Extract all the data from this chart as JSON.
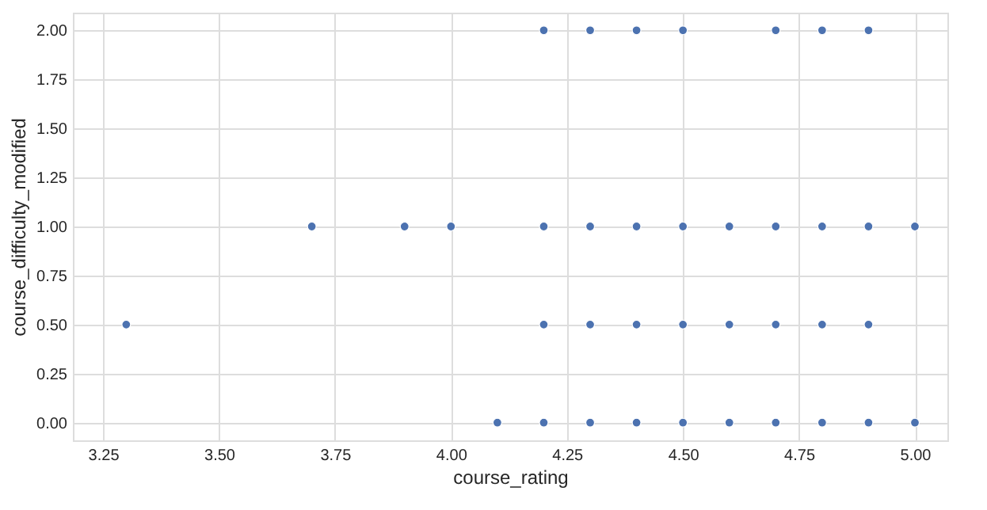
{
  "chart_data": {
    "type": "scatter",
    "xlabel": "course_rating",
    "ylabel": "course_difficulty_modified",
    "series": [
      {
        "color": "#4c72b0",
        "x": [
          4.2,
          4.3,
          4.4,
          4.5,
          4.7,
          4.8,
          4.9,
          3.7,
          3.9,
          4.0,
          4.2,
          4.3,
          4.4,
          4.5,
          4.6,
          4.7,
          4.8,
          4.9,
          5.0,
          3.3,
          4.2,
          4.3,
          4.4,
          4.5,
          4.6,
          4.7,
          4.8,
          4.9,
          4.1,
          4.2,
          4.3,
          4.4,
          4.5,
          4.6,
          4.7,
          4.8,
          4.9,
          5.0
        ],
        "values": [
          2,
          2,
          2,
          2,
          2,
          2,
          2,
          1,
          1,
          1,
          1,
          1,
          1,
          1,
          1,
          1,
          1,
          1,
          1,
          0.5,
          0.5,
          0.5,
          0.5,
          0.5,
          0.5,
          0.5,
          0.5,
          0.5,
          0,
          0,
          0,
          0,
          0,
          0,
          0,
          0,
          0,
          0
        ]
      }
    ],
    "xlim": [
      3.185,
      5.07
    ],
    "ylim": [
      -0.09,
      2.09
    ],
    "xticks": [
      3.25,
      {
        "value": 3.5,
        "label": "3.50"
      },
      {
        "value": 3.75,
        "label": "3.75"
      },
      {
        "value": 4.0,
        "label": "4.00"
      },
      4.25,
      {
        "value": 4.5,
        "label": "4.50"
      },
      4.75,
      {
        "value": 5.0,
        "label": "5.00"
      }
    ],
    "yticks": [
      {
        "value": 0,
        "label": "0.00"
      },
      0.25,
      {
        "value": 0.5,
        "label": "0.50"
      },
      0.75,
      {
        "value": 1.0,
        "label": "1.00"
      },
      1.25,
      {
        "value": 1.5,
        "label": "1.50"
      },
      1.75,
      {
        "value": 2.0,
        "label": "2.00"
      }
    ],
    "grid": true,
    "marker": "circle"
  }
}
